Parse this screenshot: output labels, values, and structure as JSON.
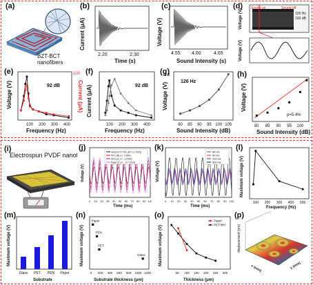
{
  "figure": {
    "panel_labels": [
      "(a)",
      "(b)",
      "(c)",
      "(d)",
      "(e)",
      "(f)",
      "(g)",
      "(h)",
      "(i)",
      "(j)",
      "(k)",
      "(l)",
      "(m)",
      "(n)",
      "(o)",
      "(p)"
    ],
    "a": {
      "caption": "BZT-BCT nanofibers"
    },
    "b": {
      "xlabel": "Time (s)",
      "ylabel": "Current (μA)",
      "xticks": [
        "2.20",
        "2.30"
      ]
    },
    "c": {
      "xlabel": "Sound Intensity (s)",
      "ylabel": "Voltage (V)",
      "xticks": [
        "4.55",
        "4.60",
        "4.65"
      ]
    },
    "d": {
      "ylabel_top": "Voltage (V)",
      "ylabel_bottom": "Voltage (V)",
      "tag_on": "Sound on",
      "tag_off": "Sound off",
      "freq": "126 Hz",
      "db": "100 dB"
    },
    "e": {
      "xlabel": "Frequency (Hz)",
      "ylabel_left": "Voltage (V)",
      "ylabel_right": "Current (μA)",
      "note": "92 dB",
      "xticks": [
        "100",
        "200",
        "300",
        "400"
      ],
      "yticks_right": [
        "100"
      ]
    },
    "f": {
      "xlabel": "Frequency (Hz)",
      "ylabel": "Current (μA)",
      "note": "92 dB",
      "xticks": [
        "100",
        "200",
        "300",
        "400"
      ]
    },
    "g": {
      "xlabel": "Sound Intensity (dB)",
      "ylabel": "Voltage (V)",
      "note": "126 Hz",
      "xticks": [
        "80",
        "85",
        "90",
        "95",
        "100",
        "105"
      ],
      "yticks": [
        "1.8"
      ]
    },
    "h": {
      "xlabel": "Sound Intensity (dB)",
      "ylabel": "Voltage (V)",
      "note": "p=5.4%",
      "xticks": [
        "80",
        "85",
        "90",
        "95",
        "100"
      ]
    },
    "i": {
      "title": "Electrospun PVDF nanofiber"
    },
    "j": {
      "xlabel": "Time (ms)",
      "ylabel": "Voltage (V)",
      "xticks": [
        "0",
        "10",
        "20",
        "30",
        "40",
        "50",
        "60",
        "70",
        "80",
        "90",
        "100"
      ],
      "legend": [
        "Glass (V=0.728, μA= 0.1 V/(V))",
        "PET (dB_e=..0.69V)",
        "PEN (ΔI_e=...0.5 MV)",
        "Paper (d_e=... 0.7 V/(V))"
      ]
    },
    "k": {
      "xlabel": "Time (ms)",
      "ylabel": "Voltage (V)",
      "xticks": [
        "0",
        "10",
        "20",
        "30",
        "40",
        "50",
        "60",
        "70",
        "80",
        "90",
        "100"
      ],
      "legend": [
        "80 Hz",
        "90 Hz",
        "100 Hz",
        "500 Hz"
      ]
    },
    "l": {
      "xlabel": "Frequency (Hz)",
      "ylabel": "Maximum voltage (V)",
      "xticks": [
        "100",
        "200",
        "300",
        "400",
        "500"
      ]
    },
    "m": {
      "xlabel": "Substrate",
      "ylabel": "Maximum voltage (V)",
      "categories": [
        "Glass",
        "PET",
        "PEN",
        "Paper"
      ]
    },
    "n": {
      "xlabel": "Substrate thickness (μm)",
      "ylabel": "Maximum voltage (V)",
      "xticks": [
        "0",
        "200",
        "400",
        "600",
        "800",
        "1000",
        "1200"
      ],
      "point_labels": [
        "Paper",
        "PEN",
        "PET",
        "Glass"
      ]
    },
    "o": {
      "xlabel": "Thickness (μm)",
      "ylabel": "Maximum voltage (V)",
      "xticks": [
        "50",
        "100",
        "150",
        "200",
        "250",
        "300"
      ],
      "legend": [
        "Paper",
        "PET film"
      ]
    },
    "p": {
      "xlabel": "x (mm)",
      "ylabel": "y (mm)",
      "zlabel": "displacement (nm)"
    }
  },
  "chart_data": [
    {
      "type": "line",
      "panel": "e",
      "x": [
        80,
        100,
        110,
        120,
        130,
        140,
        160,
        200,
        250,
        300,
        400
      ],
      "series": [
        {
          "values": [
            0.2,
            0.5,
            0.75,
            0.9,
            0.55,
            0.3,
            0.22,
            0.18,
            0.12,
            0.1,
            0.05
          ]
        },
        {
          "values": [
            20,
            40,
            62,
            72,
            45,
            28,
            22,
            18,
            15,
            12,
            8
          ]
        }
      ]
    },
    {
      "type": "line",
      "panel": "f",
      "x": [
        100,
        110,
        120,
        126,
        140,
        160,
        200,
        250,
        300,
        400
      ],
      "series": [
        {
          "values": [
            0.15,
            0.4,
            0.7,
            0.82,
            0.5,
            0.3,
            0.2,
            0.15,
            0.1,
            0.05
          ]
        },
        {
          "values": [
            0.1,
            0.2,
            0.35,
            0.5,
            0.72,
            0.85,
            0.55,
            0.35,
            0.2,
            0.1
          ]
        }
      ]
    },
    {
      "type": "line",
      "panel": "g",
      "x": [
        80,
        85,
        90,
        95,
        100,
        105
      ],
      "values": [
        0.25,
        0.38,
        0.55,
        0.8,
        1.2,
        1.8
      ],
      "ylim": [
        0,
        1.9
      ]
    },
    {
      "type": "scatter",
      "panel": "h",
      "x": [
        80,
        85,
        90,
        95,
        100,
        103
      ],
      "values": [
        0.2,
        0.3,
        0.45,
        0.65,
        1.0,
        1.4
      ]
    },
    {
      "type": "line",
      "panel": "l",
      "x": [
        80,
        100,
        300,
        500
      ],
      "values": [
        0.9,
        3.0,
        1.1,
        0.6
      ]
    },
    {
      "type": "bar",
      "panel": "m",
      "categories": [
        "Glass",
        "PET",
        "PEN",
        "Paper"
      ],
      "values": [
        0.9,
        1.6,
        2.45,
        3.5
      ],
      "ylim": [
        0,
        3.8
      ]
    },
    {
      "type": "scatter",
      "panel": "n",
      "x": [
        40,
        125,
        175,
        1100
      ],
      "values": [
        3.4,
        2.5,
        1.5,
        0.8
      ],
      "ylim": [
        0,
        4
      ]
    },
    {
      "type": "line",
      "panel": "o",
      "x": [
        20,
        55,
        100,
        150,
        200,
        250
      ],
      "series": [
        {
          "name": "PET film",
          "values": [
            2.1,
            1.7,
            1.2,
            0.75,
            0.55,
            0.4
          ]
        },
        {
          "name": "Paper",
          "values": [
            null,
            1.95,
            0.9,
            null,
            null,
            null
          ]
        }
      ]
    }
  ]
}
